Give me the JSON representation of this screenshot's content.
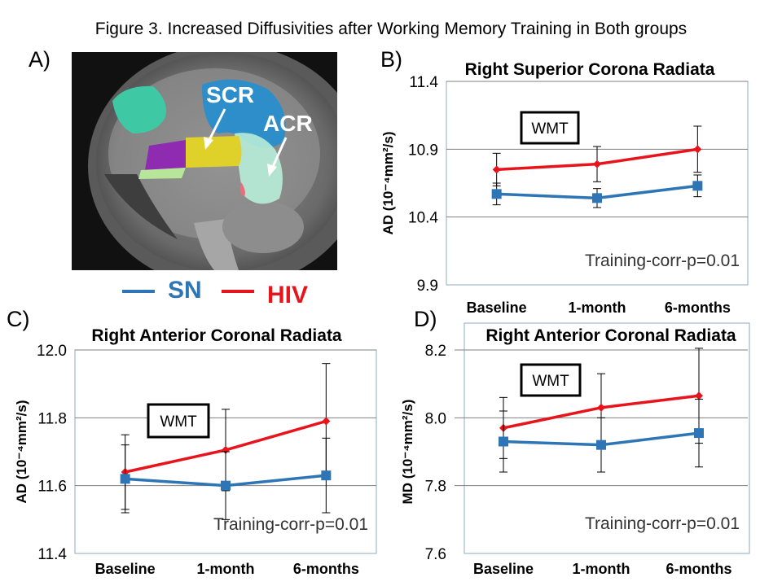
{
  "figure_title": "Figure 3.  Increased Diffusivities after Working Memory Training in Both groups",
  "panel_letters": [
    "A)",
    "B)",
    "C)",
    "D)"
  ],
  "brain": {
    "labels": [
      "SCR",
      "ACR"
    ]
  },
  "legend": [
    {
      "name": "SN",
      "color": "#2E75B6"
    },
    {
      "name": "HIV",
      "color": "#E8141B"
    }
  ],
  "chart_data": [
    {
      "type": "line",
      "title": "Right Superior Corona Radiata",
      "ylabel": "AD (10⁻⁴mm²/s)",
      "categories": [
        "Baseline",
        "1-month",
        "6-months"
      ],
      "ylim": [
        9.9,
        11.4
      ],
      "yticks": [
        "9.9",
        "10.4",
        "10.9",
        "11.4"
      ],
      "annotation_box": "WMT",
      "annotation_text": "Training-corr-p=0.01",
      "series": [
        {
          "name": "HIV",
          "color": "#E8141B",
          "values": [
            10.75,
            10.79,
            10.9
          ],
          "errors": [
            0.12,
            0.13,
            0.17
          ]
        },
        {
          "name": "SN",
          "color": "#2E75B6",
          "values": [
            10.57,
            10.54,
            10.63
          ],
          "errors": [
            0.08,
            0.07,
            0.08
          ]
        }
      ]
    },
    {
      "type": "line",
      "title": "Right Anterior Coronal Radiata",
      "ylabel": "AD (10⁻⁴mm²/s)",
      "categories": [
        "Baseline",
        "1-month",
        "6-months"
      ],
      "ylim": [
        11.4,
        12.0
      ],
      "yticks": [
        "11.4",
        "11.6",
        "11.8",
        "12.0"
      ],
      "annotation_box": "WMT",
      "annotation_text": "Training-corr-p=0.01",
      "series": [
        {
          "name": "HIV",
          "color": "#E8141B",
          "values": [
            11.64,
            11.705,
            11.79
          ],
          "errors": [
            0.11,
            0.12,
            0.17
          ]
        },
        {
          "name": "SN",
          "color": "#2E75B6",
          "values": [
            11.62,
            11.6,
            11.63
          ],
          "errors": [
            0.1,
            0.1,
            0.11
          ]
        }
      ]
    },
    {
      "type": "line",
      "title": "Right Anterior Coronal Radiata",
      "ylabel": "MD (10⁻⁴mm²/s)",
      "categories": [
        "Baseline",
        "1-month",
        "6-months"
      ],
      "ylim": [
        7.6,
        8.2
      ],
      "yticks": [
        "7.6",
        "7.8",
        "8.0",
        "8.2"
      ],
      "annotation_box": "WMT",
      "annotation_text": "Training-corr-p=0.01",
      "series": [
        {
          "name": "HIV",
          "color": "#E8141B",
          "values": [
            7.97,
            8.03,
            8.065
          ],
          "errors": [
            0.09,
            0.1,
            0.14
          ]
        },
        {
          "name": "SN",
          "color": "#2E75B6",
          "values": [
            7.93,
            7.92,
            7.955
          ],
          "errors": [
            0.09,
            0.08,
            0.1
          ]
        }
      ]
    }
  ]
}
